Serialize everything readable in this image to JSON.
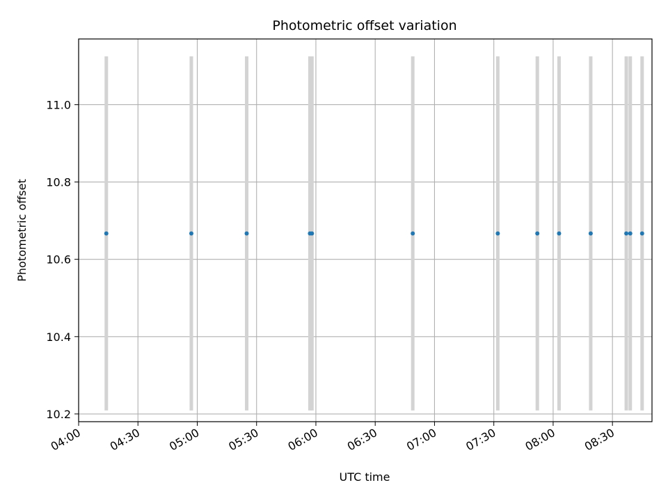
{
  "chart_data": {
    "type": "scatter",
    "title": "Photometric offset variation",
    "xlabel": "UTC time",
    "ylabel": "Photometric offset",
    "x_axis_type": "time",
    "xlim": [
      "04:00",
      "08:50"
    ],
    "ylim": [
      10.18,
      11.17
    ],
    "grid": true,
    "x_ticks": [
      "04:00",
      "04:30",
      "05:00",
      "05:30",
      "06:00",
      "06:30",
      "07:00",
      "07:30",
      "08:00",
      "08:30"
    ],
    "y_ticks": [
      "10.2",
      "10.4",
      "10.6",
      "10.8",
      "11.0"
    ],
    "series": [
      {
        "color": "#1f77b4",
        "errorbar_color": "#d3d3d3",
        "x": [
          "04:14",
          "04:57",
          "05:25",
          "05:57",
          "05:58",
          "06:49",
          "07:32",
          "07:52",
          "08:03",
          "08:19",
          "08:37",
          "08:39",
          "08:45"
        ],
        "y": [
          10.667,
          10.667,
          10.667,
          10.667,
          10.667,
          10.667,
          10.667,
          10.667,
          10.667,
          10.667,
          10.667,
          10.667,
          10.667
        ],
        "yerr": [
          0.458,
          0.458,
          0.458,
          0.458,
          0.458,
          0.458,
          0.458,
          0.458,
          0.458,
          0.458,
          0.458,
          0.458,
          0.458
        ]
      }
    ]
  }
}
